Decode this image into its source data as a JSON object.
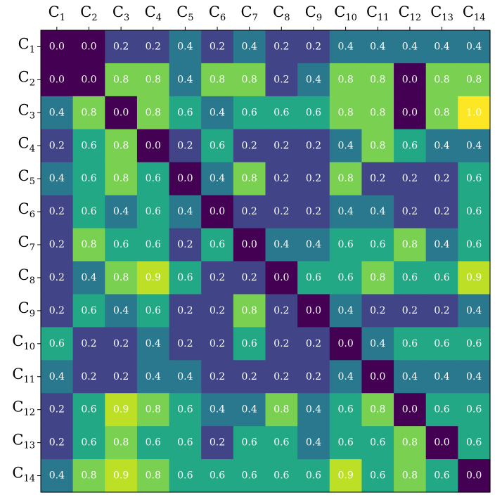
{
  "chart_data": {
    "type": "heatmap",
    "colormap": "viridis",
    "vmin": 0.0,
    "vmax": 1.0,
    "x_labels": [
      {
        "base": "C",
        "sub": "1"
      },
      {
        "base": "C",
        "sub": "2"
      },
      {
        "base": "C",
        "sub": "3"
      },
      {
        "base": "C",
        "sub": "4"
      },
      {
        "base": "C",
        "sub": "5"
      },
      {
        "base": "C",
        "sub": "6"
      },
      {
        "base": "C",
        "sub": "7"
      },
      {
        "base": "C",
        "sub": "8"
      },
      {
        "base": "C",
        "sub": "9"
      },
      {
        "base": "C",
        "sub": "10"
      },
      {
        "base": "C",
        "sub": "11"
      },
      {
        "base": "C",
        "sub": "12"
      },
      {
        "base": "C",
        "sub": "13"
      },
      {
        "base": "C",
        "sub": "14"
      }
    ],
    "y_labels": [
      {
        "base": "C",
        "sub": "1"
      },
      {
        "base": "C",
        "sub": "2"
      },
      {
        "base": "C",
        "sub": "3"
      },
      {
        "base": "C",
        "sub": "4"
      },
      {
        "base": "C",
        "sub": "5"
      },
      {
        "base": "C",
        "sub": "6"
      },
      {
        "base": "C",
        "sub": "7"
      },
      {
        "base": "C",
        "sub": "8"
      },
      {
        "base": "C",
        "sub": "9"
      },
      {
        "base": "C",
        "sub": "10"
      },
      {
        "base": "C",
        "sub": "11"
      },
      {
        "base": "C",
        "sub": "12"
      },
      {
        "base": "C",
        "sub": "13"
      },
      {
        "base": "C",
        "sub": "14"
      }
    ],
    "values": [
      [
        0.0,
        0.0,
        0.2,
        0.2,
        0.4,
        0.2,
        0.4,
        0.2,
        0.2,
        0.4,
        0.4,
        0.4,
        0.4,
        0.4
      ],
      [
        0.0,
        0.0,
        0.8,
        0.8,
        0.4,
        0.8,
        0.8,
        0.2,
        0.4,
        0.8,
        0.8,
        0.0,
        0.8,
        0.8
      ],
      [
        0.4,
        0.8,
        0.0,
        0.8,
        0.6,
        0.4,
        0.6,
        0.6,
        0.6,
        0.8,
        0.8,
        0.0,
        0.8,
        1.0
      ],
      [
        0.2,
        0.6,
        0.8,
        0.0,
        0.2,
        0.6,
        0.2,
        0.2,
        0.2,
        0.4,
        0.8,
        0.6,
        0.4,
        0.4
      ],
      [
        0.4,
        0.6,
        0.8,
        0.6,
        0.0,
        0.4,
        0.8,
        0.2,
        0.2,
        0.8,
        0.2,
        0.2,
        0.2,
        0.6
      ],
      [
        0.2,
        0.6,
        0.4,
        0.6,
        0.4,
        0.0,
        0.2,
        0.2,
        0.2,
        0.4,
        0.4,
        0.2,
        0.2,
        0.6
      ],
      [
        0.2,
        0.8,
        0.6,
        0.6,
        0.2,
        0.6,
        0.0,
        0.4,
        0.4,
        0.6,
        0.6,
        0.8,
        0.4,
        0.6
      ],
      [
        0.2,
        0.4,
        0.8,
        0.9,
        0.6,
        0.2,
        0.2,
        0.0,
        0.6,
        0.6,
        0.8,
        0.6,
        0.6,
        0.9
      ],
      [
        0.2,
        0.6,
        0.4,
        0.6,
        0.2,
        0.2,
        0.8,
        0.2,
        0.0,
        0.4,
        0.2,
        0.2,
        0.2,
        0.4
      ],
      [
        0.6,
        0.2,
        0.2,
        0.4,
        0.2,
        0.2,
        0.6,
        0.2,
        0.2,
        0.0,
        0.4,
        0.6,
        0.6,
        0.6
      ],
      [
        0.4,
        0.2,
        0.2,
        0.4,
        0.4,
        0.2,
        0.2,
        0.2,
        0.2,
        0.4,
        0.0,
        0.4,
        0.4,
        0.4
      ],
      [
        0.2,
        0.6,
        0.9,
        0.8,
        0.6,
        0.4,
        0.4,
        0.8,
        0.4,
        0.6,
        0.8,
        0.0,
        0.6,
        0.6
      ],
      [
        0.2,
        0.6,
        0.8,
        0.6,
        0.6,
        0.2,
        0.6,
        0.6,
        0.4,
        0.6,
        0.6,
        0.8,
        0.0,
        0.6
      ],
      [
        0.4,
        0.8,
        0.9,
        0.8,
        0.6,
        0.6,
        0.6,
        0.6,
        0.6,
        0.9,
        0.6,
        0.8,
        0.6,
        0.0
      ]
    ],
    "title": "",
    "xlabel": "",
    "ylabel": "",
    "x_axis_position": "top",
    "grid": false,
    "legend": "none",
    "text_color": "#ffffff",
    "axis_color": "#000000"
  }
}
